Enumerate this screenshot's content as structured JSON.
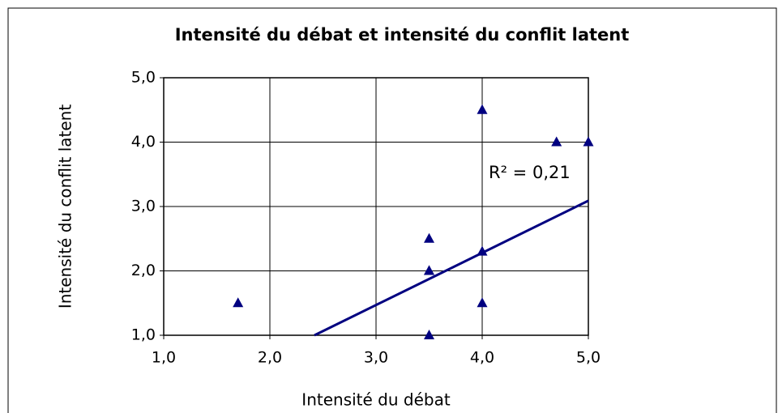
{
  "chart_data": {
    "type": "scatter",
    "title": "Intensité du débat et intensité du conflit latent",
    "x_label": "Intensité du débat",
    "y_label": "Intensité du conflit latent",
    "series": [
      {
        "name": null,
        "color": "#000080",
        "marker": "triangle",
        "x": [
          1.7,
          3.5,
          3.5,
          3.5,
          3.5,
          4.0,
          4.0,
          4.0,
          4.7,
          5.0
        ],
        "values": [
          1.5,
          1.0,
          2.0,
          2.0,
          2.5,
          4.5,
          2.3,
          1.5,
          4.0,
          4.0
        ]
      }
    ],
    "trendline": {
      "color": "#000080",
      "x": [
        2.42,
        5.0
      ],
      "values": [
        1.0,
        3.09
      ]
    },
    "annotation": {
      "text": "R² = 0,21",
      "color": "#ff0000"
    },
    "xlim": [
      1,
      5
    ],
    "ylim": [
      1,
      5
    ],
    "xticks": [
      {
        "value": 1,
        "label": "1,0"
      },
      {
        "value": 2,
        "label": "2,0"
      },
      {
        "value": 3,
        "label": "3,0"
      },
      {
        "value": 4,
        "label": "4,0"
      },
      {
        "value": 5,
        "label": "5,0"
      }
    ],
    "yticks": [
      {
        "value": 1,
        "label": "1,0"
      },
      {
        "value": 2,
        "label": "2,0"
      },
      {
        "value": 3,
        "label": "3,0"
      },
      {
        "value": 4,
        "label": "4,0"
      },
      {
        "value": 5,
        "label": "5,0"
      }
    ],
    "grid": true
  }
}
